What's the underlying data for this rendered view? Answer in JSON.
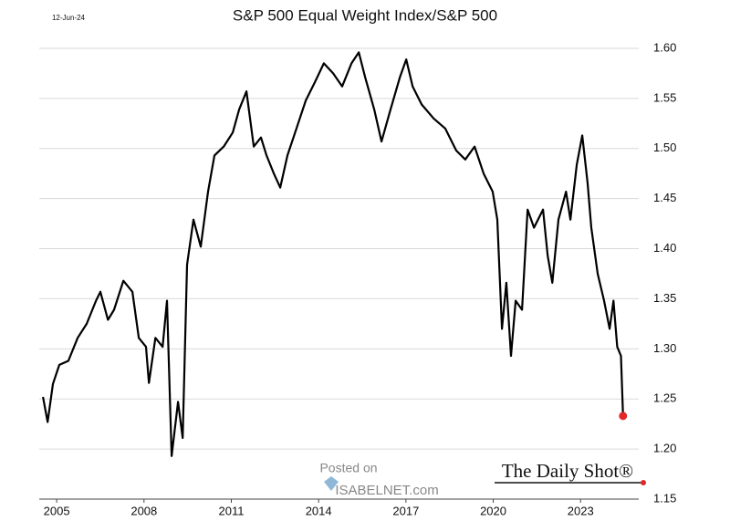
{
  "chart_data": {
    "type": "line",
    "title": "S&P 500 Equal Weight Index/S&P 500",
    "date_label": "12-Jun-24",
    "watermark": [
      "Posted on",
      "ISABELNET.com"
    ],
    "source": "The Daily Shot®",
    "x": [
      2004.53,
      2004.69,
      2004.87,
      2005.09,
      2005.4,
      2005.72,
      2006.03,
      2006.35,
      2006.5,
      2006.76,
      2006.97,
      2007.29,
      2007.6,
      2007.82,
      2008.07,
      2008.17,
      2008.39,
      2008.64,
      2008.79,
      2008.95,
      2009.17,
      2009.33,
      2009.48,
      2009.7,
      2009.95,
      2010.2,
      2010.42,
      2010.74,
      2011.05,
      2011.27,
      2011.52,
      2011.77,
      2012.02,
      2012.21,
      2012.46,
      2012.68,
      2012.93,
      2013.24,
      2013.56,
      2013.87,
      2014.18,
      2014.5,
      2014.81,
      2015.13,
      2015.38,
      2015.6,
      2015.91,
      2016.16,
      2016.47,
      2016.79,
      2017.01,
      2017.23,
      2017.54,
      2017.95,
      2018.35,
      2018.73,
      2019.04,
      2019.36,
      2019.67,
      2019.98,
      2020.14,
      2020.3,
      2020.45,
      2020.61,
      2020.77,
      2020.99,
      2021.18,
      2021.4,
      2021.71,
      2021.87,
      2022.03,
      2022.24,
      2022.5,
      2022.65,
      2022.87,
      2023.06,
      2023.24,
      2023.37,
      2023.59,
      2023.81,
      2024.0,
      2024.13,
      2024.26,
      2024.39,
      2024.46
    ],
    "series": [
      {
        "color": "#000000",
        "values": [
          1.252,
          1.227,
          1.265,
          1.284,
          1.288,
          1.311,
          1.325,
          1.348,
          1.357,
          1.329,
          1.339,
          1.368,
          1.357,
          1.311,
          1.302,
          1.266,
          1.311,
          1.302,
          1.348,
          1.193,
          1.247,
          1.211,
          1.384,
          1.429,
          1.402,
          1.457,
          1.493,
          1.502,
          1.516,
          1.539,
          1.557,
          1.502,
          1.511,
          1.493,
          1.475,
          1.461,
          1.493,
          1.52,
          1.548,
          1.566,
          1.585,
          1.575,
          1.562,
          1.585,
          1.596,
          1.571,
          1.539,
          1.507,
          1.539,
          1.571,
          1.589,
          1.562,
          1.544,
          1.53,
          1.52,
          1.498,
          1.489,
          1.502,
          1.475,
          1.457,
          1.429,
          1.32,
          1.366,
          1.293,
          1.348,
          1.339,
          1.439,
          1.421,
          1.439,
          1.393,
          1.366,
          1.429,
          1.457,
          1.429,
          1.484,
          1.513,
          1.466,
          1.421,
          1.375,
          1.348,
          1.32,
          1.348,
          1.302,
          1.293,
          1.233
        ]
      }
    ],
    "last_point_color": "#e0282a",
    "xlim": [
      2004.4,
      2025
    ],
    "xticks": [
      2005,
      2008,
      2011,
      2014,
      2017,
      2020,
      2023
    ],
    "ylim": [
      1.15,
      1.61
    ],
    "yticks": [
      1.15,
      {
        "value": 1.2,
        "label": "1.20"
      },
      1.25,
      {
        "value": 1.3,
        "label": "1.30"
      },
      1.35,
      {
        "value": 1.4,
        "label": "1.40"
      },
      1.45,
      {
        "value": 1.5,
        "label": "1.50"
      },
      1.55,
      {
        "value": 1.6,
        "label": "1.60"
      }
    ],
    "grid": true
  }
}
